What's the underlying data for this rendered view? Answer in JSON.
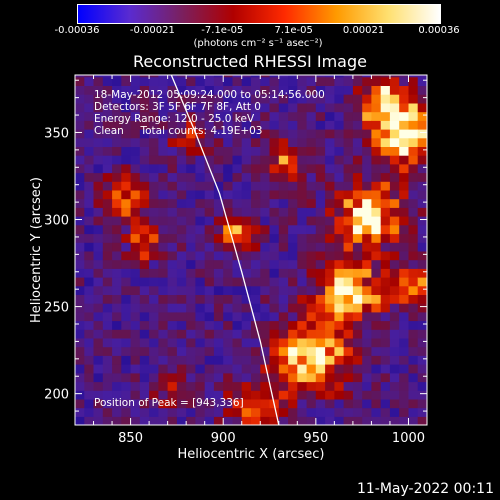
{
  "colorbar": {
    "ticks": [
      "-0.00036",
      "-0.00021",
      "-7.1e-05",
      "7.1e-05",
      "0.00021",
      "0.00036"
    ],
    "tick_values": [
      -0.00036,
      -0.00021,
      -7.1e-05,
      7.1e-05,
      0.00021,
      0.00036
    ],
    "range": [
      -0.00036,
      0.00036
    ],
    "label": "(photons cm⁻² s⁻¹ asec⁻²)",
    "colors": [
      "#0000ff",
      "#5a2bd0",
      "#7a2060",
      "#b00000",
      "#ff2a00",
      "#ff9a00",
      "#ffe070",
      "#ffffff"
    ]
  },
  "chart_data": {
    "type": "heatmap",
    "title": "Reconstructed RHESSI Image",
    "xlabel": "Heliocentric X (arcsec)",
    "ylabel": "Heliocentric Y (arcsec)",
    "xlim": [
      820,
      1010
    ],
    "ylim": [
      182,
      383
    ],
    "x_ticks": [
      "850",
      "900",
      "950",
      "1000"
    ],
    "x_tick_values": [
      850,
      900,
      950,
      1000
    ],
    "y_ticks": [
      "200",
      "250",
      "300",
      "350"
    ],
    "y_tick_values": [
      200,
      250,
      300,
      350
    ],
    "info_lines": [
      "18-May-2012 05:09:24.000 to 05:14:56.000",
      "Detectors: 3F 5F 6F 7F 8F, Att 0",
      "Energy Range: 12.0 - 25.0 keV",
      "Clean     Total counts: 4.19E+03"
    ],
    "peak_label": "Position of Peak = [943,336]",
    "peak_position": [
      943,
      336
    ],
    "limb_curve": [
      [
        872,
        383
      ],
      [
        885,
        350
      ],
      [
        898,
        315
      ],
      [
        910,
        270
      ],
      [
        920,
        230
      ],
      [
        930,
        182
      ]
    ]
  },
  "footer": {
    "timestamp": "11-May-2022 00:11"
  }
}
